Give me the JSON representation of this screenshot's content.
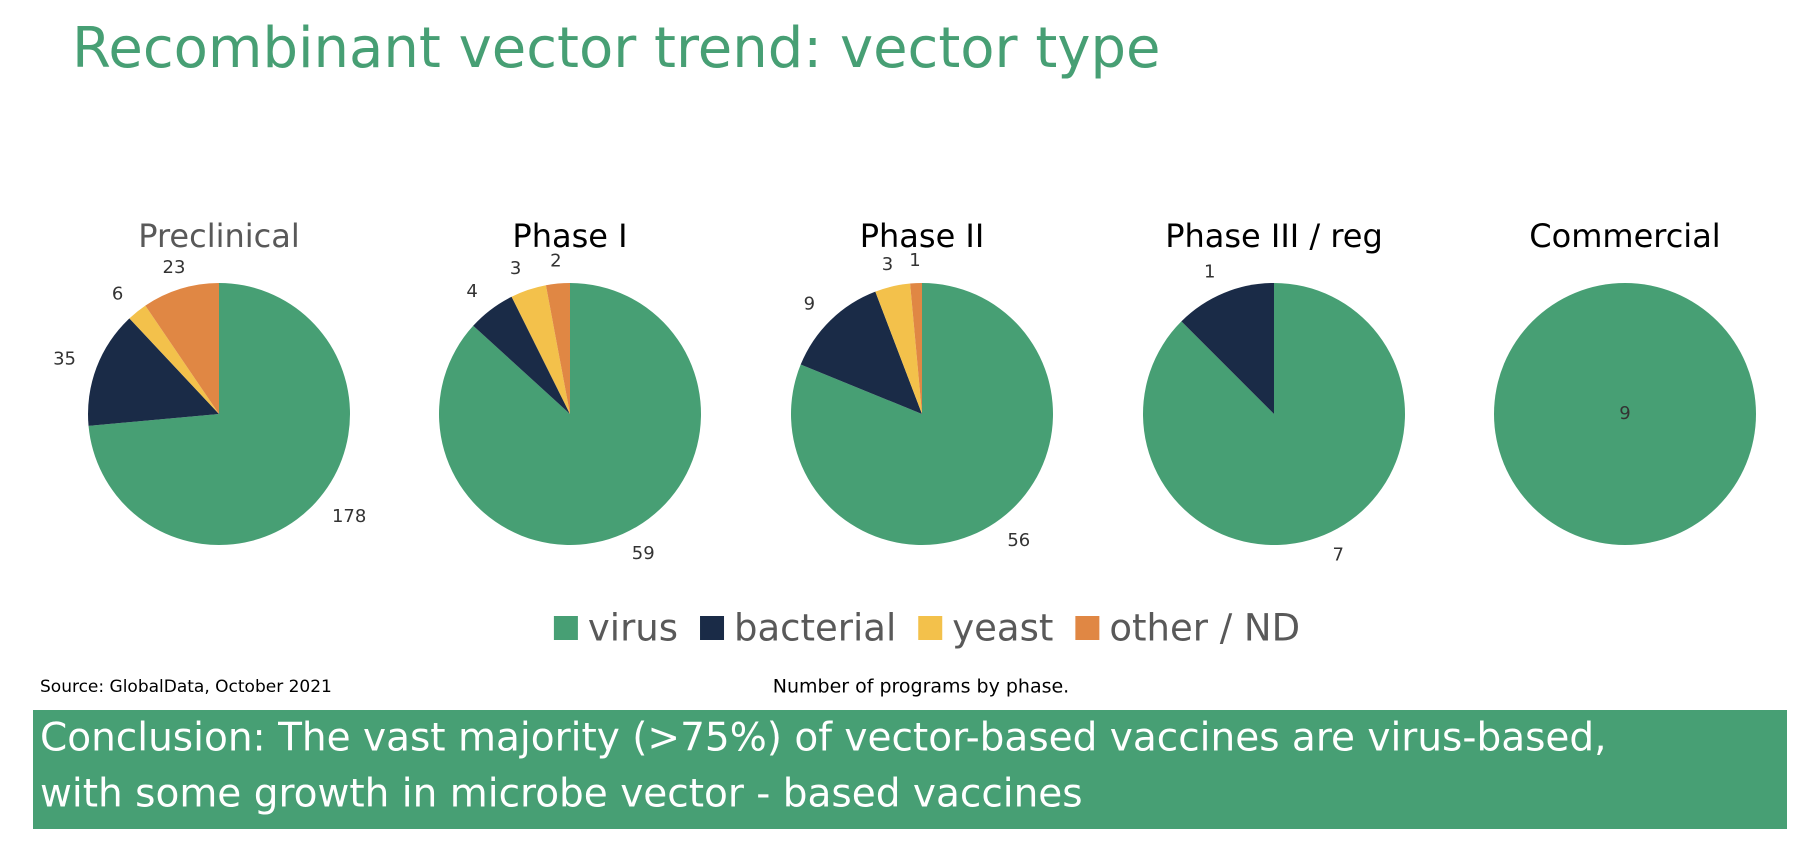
{
  "title": "Recombinant vector trend: vector type",
  "legend": [
    {
      "name": "virus",
      "color": "#479f74"
    },
    {
      "name": "bacterial",
      "color": "#1a2b47"
    },
    {
      "name": "yeast",
      "color": "#f3c14b"
    },
    {
      "name": "other / ND",
      "color": "#e08744"
    }
  ],
  "chart_data": [
    {
      "type": "pie",
      "title": "Preclinical",
      "title_color": "#595959",
      "values": [
        178,
        35,
        6,
        23
      ]
    },
    {
      "type": "pie",
      "title": "Phase I",
      "title_color": "#000000",
      "values": [
        59,
        4,
        3,
        2
      ]
    },
    {
      "type": "pie",
      "title": "Phase II",
      "title_color": "#000000",
      "values": [
        56,
        9,
        3,
        1
      ]
    },
    {
      "type": "pie",
      "title": "Phase III / reg",
      "title_color": "#000000",
      "values": [
        7,
        1
      ]
    },
    {
      "type": "pie",
      "title": "Commercial",
      "title_color": "#000000",
      "values": [
        9
      ]
    }
  ],
  "source": "Source: GlobalData, October 2021",
  "note": "Number of programs by phase.",
  "conclusion": [
    "Conclusion: The vast majority (>75%) of vector-based vaccines are virus-based,",
    "with some growth in microbe vector - based vaccines"
  ]
}
